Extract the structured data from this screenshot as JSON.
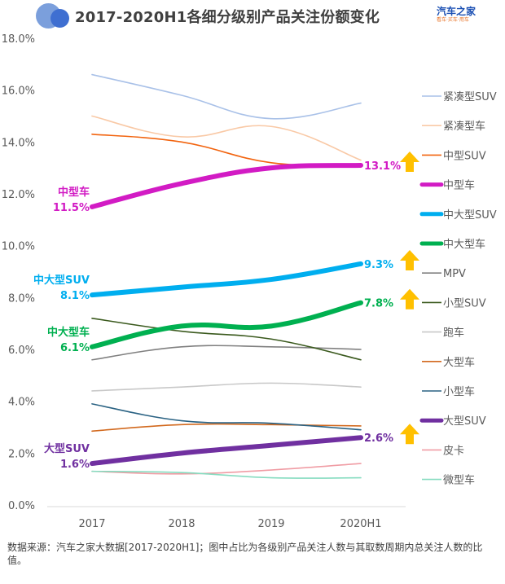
{
  "header": {
    "title": "2017-2020H1各细分级别产品关注份额变化",
    "brand_name": "汽车之家",
    "brand_sub": "看车·买车·用车"
  },
  "footnote": "数据来源：汽车之家大数据[2017-2020H1]；图中占比为各级别产品关注人数与其取数周期内总关注人数的比值。",
  "chart_data": {
    "type": "line",
    "title": "2017-2020H1各细分级别产品关注份额变化",
    "xlabel": "",
    "ylabel": "",
    "categories": [
      "2017",
      "2018",
      "2019",
      "2020H1"
    ],
    "ylim": [
      0,
      18
    ],
    "yticks": [
      "0.0%",
      "2.0%",
      "4.0%",
      "6.0%",
      "8.0%",
      "10.0%",
      "12.0%",
      "14.0%",
      "16.0%",
      "18.0%"
    ],
    "grid": false,
    "legend_position": "right",
    "smooth": true,
    "series": [
      {
        "name": "紧凑型SUV",
        "color": "#a9c1e8",
        "bold": false,
        "values": [
          16.6,
          15.8,
          14.9,
          15.5
        ]
      },
      {
        "name": "紧凑型车",
        "color": "#f9c9a6",
        "bold": false,
        "values": [
          15.0,
          14.2,
          14.6,
          13.3
        ]
      },
      {
        "name": "中型SUV",
        "color": "#f2640f",
        "bold": false,
        "values": [
          14.3,
          14.0,
          13.2,
          13.1
        ]
      },
      {
        "name": "中型车",
        "color": "#d21bc4",
        "bold": true,
        "values": [
          11.5,
          12.4,
          13.0,
          13.1
        ],
        "start_label": "中型车",
        "start_value_label": "11.5%",
        "end_value_label": "13.1%",
        "trend_up": true
      },
      {
        "name": "中大型SUV",
        "color": "#00aeef",
        "bold": true,
        "values": [
          8.1,
          8.4,
          8.7,
          9.3
        ],
        "start_label": "中大型SUV",
        "start_value_label": "8.1%",
        "end_value_label": "9.3%",
        "trend_up": true
      },
      {
        "name": "中大型车",
        "color": "#00b050",
        "bold": true,
        "values": [
          6.1,
          6.9,
          6.9,
          7.8
        ],
        "start_label": "中大型车",
        "start_value_label": "6.1%",
        "end_value_label": "7.8%",
        "trend_up": true
      },
      {
        "name": "MPV",
        "color": "#808080",
        "bold": false,
        "values": [
          5.6,
          6.1,
          6.1,
          6.0
        ]
      },
      {
        "name": "小型SUV",
        "color": "#3b5a1e",
        "bold": false,
        "values": [
          7.2,
          6.7,
          6.4,
          5.6
        ]
      },
      {
        "name": "跑车",
        "color": "#c8c8c8",
        "bold": false,
        "values": [
          4.4,
          4.55,
          4.7,
          4.55
        ]
      },
      {
        "name": "大型车",
        "color": "#d2691e",
        "bold": false,
        "values": [
          2.85,
          3.1,
          3.1,
          3.05
        ]
      },
      {
        "name": "小型车",
        "color": "#2a6283",
        "bold": false,
        "values": [
          3.9,
          3.25,
          3.15,
          2.9
        ]
      },
      {
        "name": "大型SUV",
        "color": "#7030a0",
        "bold": true,
        "values": [
          1.6,
          2.0,
          2.3,
          2.6
        ],
        "start_label": "大型SUV",
        "start_value_label": "1.6%",
        "end_value_label": "2.6%",
        "trend_up": true
      },
      {
        "name": "皮卡",
        "color": "#f09ca4",
        "bold": false,
        "values": [
          1.3,
          1.2,
          1.35,
          1.6
        ]
      },
      {
        "name": "微型车",
        "color": "#86dcc0",
        "bold": false,
        "values": [
          1.3,
          1.25,
          1.05,
          1.05
        ]
      }
    ],
    "trend_arrow_color": "#ffc000"
  }
}
